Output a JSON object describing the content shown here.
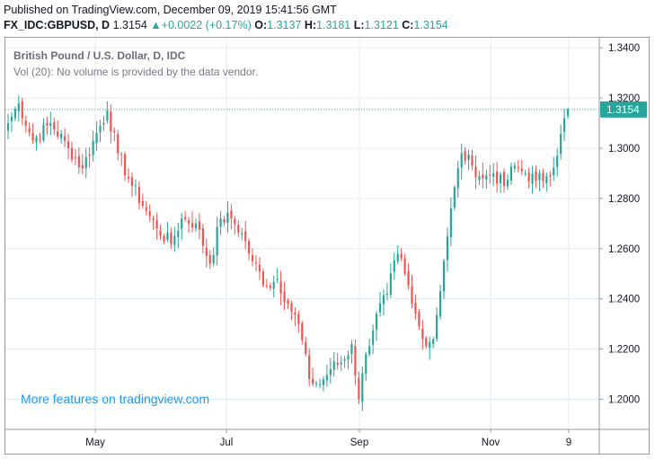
{
  "header": {
    "published": "Published on TradingView.com, December 09, 2019 15:41:56 GMT",
    "symbol": "FX_IDC:GBPUSD, D",
    "last": "1.3154",
    "arrow": "▲",
    "change": "+0.0022 (+0.17%)",
    "o_label": "O:",
    "o": "1.3137",
    "h_label": "H:",
    "h": "1.3181",
    "l_label": "L:",
    "l": "1.3121",
    "c_label": "C:",
    "c": "1.3154"
  },
  "legend": {
    "title": "British Pound / U.S. Dollar, D, IDC",
    "volume": "Vol (20): No volume is provided by the data vendor."
  },
  "promo": "More features on tradingview.com",
  "colors": {
    "up": "#26a69a",
    "down": "#ef5350",
    "grid": "#e1ecf2",
    "price_line": "#26a69a",
    "price_label_bg": "#26a69a",
    "promo": "#2196f3"
  },
  "chart_data": {
    "type": "candlestick",
    "title": "British Pound / U.S. Dollar, D, IDC",
    "ylim": [
      1.188,
      1.344
    ],
    "y_ticks": [
      "1.3400",
      "1.3200",
      "1.3000",
      "1.2800",
      "1.2600",
      "1.2400",
      "1.2200",
      "1.2000"
    ],
    "y_tick_values": [
      1.34,
      1.32,
      1.3,
      1.28,
      1.26,
      1.24,
      1.22,
      1.2
    ],
    "x_ticks": [
      "May",
      "Jul",
      "Sep",
      "Nov",
      "9"
    ],
    "last_price": 1.3154,
    "last_price_label": "1.3154",
    "grid": true,
    "anchors": [
      [
        0,
        1.31
      ],
      [
        3,
        1.318
      ],
      [
        7,
        1.303
      ],
      [
        12,
        1.31
      ],
      [
        17,
        1.3
      ],
      [
        21,
        1.292
      ],
      [
        25,
        1.306
      ],
      [
        28,
        1.315
      ],
      [
        31,
        1.298
      ],
      [
        35,
        1.285
      ],
      [
        39,
        1.275
      ],
      [
        42,
        1.268
      ],
      [
        46,
        1.262
      ],
      [
        49,
        1.272
      ],
      [
        53,
        1.27
      ],
      [
        57,
        1.254
      ],
      [
        60,
        1.272
      ],
      [
        63,
        1.272
      ],
      [
        66,
        1.266
      ],
      [
        69,
        1.255
      ],
      [
        73,
        1.245
      ],
      [
        76,
        1.248
      ],
      [
        79,
        1.238
      ],
      [
        82,
        1.23
      ],
      [
        85,
        1.208
      ],
      [
        88,
        1.206
      ],
      [
        91,
        1.212
      ],
      [
        95,
        1.216
      ],
      [
        97,
        1.222
      ],
      [
        99,
        1.2
      ],
      [
        101,
        1.218
      ],
      [
        104,
        1.234
      ],
      [
        107,
        1.242
      ],
      [
        110,
        1.258
      ],
      [
        112,
        1.25
      ],
      [
        114,
        1.238
      ],
      [
        117,
        1.224
      ],
      [
        120,
        1.224
      ],
      [
        123,
        1.255
      ],
      [
        125,
        1.276
      ],
      [
        128,
        1.298
      ],
      [
        131,
        1.293
      ],
      [
        134,
        1.288
      ],
      [
        137,
        1.29
      ],
      [
        140,
        1.285
      ],
      [
        143,
        1.293
      ],
      [
        146,
        1.29
      ],
      [
        149,
        1.287
      ],
      [
        152,
        1.289
      ],
      [
        155,
        1.297
      ],
      [
        157,
        1.312
      ],
      [
        158,
        1.3154
      ]
    ]
  }
}
